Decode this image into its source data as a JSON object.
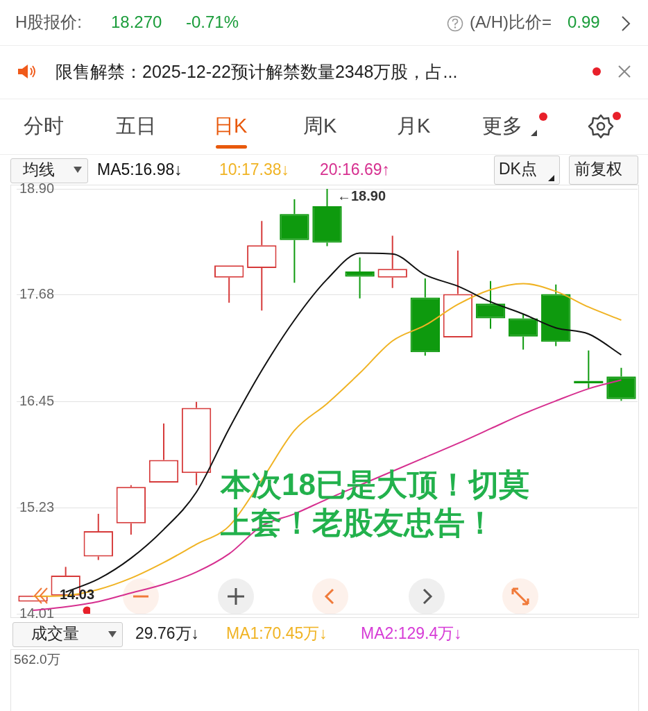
{
  "chart_data": {
    "type": "candlestick",
    "categories": [
      null,
      null,
      null,
      null,
      null,
      null,
      null,
      null,
      null,
      null,
      null,
      null,
      null,
      null,
      null,
      null,
      null,
      null,
      null
    ],
    "ohlc": [
      [
        14.15,
        14.22,
        14.15,
        14.22
      ],
      [
        14.22,
        14.55,
        14.22,
        14.45
      ],
      [
        14.67,
        15.16,
        14.63,
        14.96
      ],
      [
        15.05,
        15.49,
        14.92,
        15.47
      ],
      [
        15.52,
        16.2,
        15.52,
        15.78
      ],
      [
        15.63,
        16.45,
        15.49,
        16.38
      ],
      [
        17.88,
        18.02,
        17.59,
        18.02
      ],
      [
        17.99,
        18.53,
        17.5,
        18.25
      ],
      [
        18.61,
        18.78,
        17.82,
        18.31
      ],
      [
        18.7,
        18.9,
        18.24,
        18.28
      ],
      [
        17.95,
        18.11,
        17.64,
        17.89
      ],
      [
        17.88,
        18.36,
        17.76,
        17.98
      ],
      [
        17.65,
        17.87,
        16.98,
        17.02
      ],
      [
        17.19,
        18.19,
        17.19,
        17.69
      ],
      [
        17.58,
        17.84,
        17.29,
        17.41
      ],
      [
        17.41,
        17.46,
        17.05,
        17.2
      ],
      [
        17.69,
        17.8,
        17.09,
        17.14
      ],
      [
        16.69,
        17.04,
        16.6,
        16.66
      ],
      [
        16.74,
        16.84,
        16.46,
        16.48
      ]
    ],
    "colors": [
      "#d63a3a",
      "#d63a3a",
      "#d63a3a",
      "#d63a3a",
      "#d63a3a",
      "#d63a3a",
      "#d63a3a",
      "#d63a3a",
      "#0e9a0e",
      "#0e9a0e",
      "#0e9a0e",
      "#d63a3a",
      "#0e9a0e",
      "#d63a3a",
      "#0e9a0e",
      "#0e9a0e",
      "#0e9a0e",
      "#0e9a0e",
      "#0e9a0e"
    ],
    "series": [
      {
        "name": "MA5:16.98↓",
        "color": "#111111",
        "type": "line",
        "values": [
          null,
          14.26,
          14.41,
          14.65,
          14.98,
          15.41,
          16.14,
          16.81,
          17.39,
          17.86,
          18.16,
          18.15,
          17.91,
          17.78,
          17.6,
          17.46,
          17.3,
          17.23,
          16.99
        ]
      },
      {
        "name": "10:17.38↓",
        "color": "#f0b323",
        "type": "line",
        "values": [
          14.21,
          14.22,
          14.29,
          14.42,
          14.6,
          14.81,
          15.02,
          15.55,
          16.12,
          16.43,
          16.78,
          17.15,
          17.33,
          17.57,
          17.74,
          17.81,
          17.72,
          17.54,
          17.39
        ]
      },
      {
        "name": "20:16.69↑",
        "color": "#d62f8f",
        "type": "line",
        "values": [
          14.05,
          14.09,
          14.15,
          14.25,
          14.35,
          14.49,
          14.7,
          15.02,
          15.16,
          15.33,
          15.49,
          15.65,
          15.81,
          15.97,
          16.14,
          16.31,
          16.46,
          16.6,
          16.7
        ]
      }
    ],
    "ylim": [
      14.01,
      18.9
    ],
    "yticks": [
      {
        "value": 14.01,
        "label": "14.01"
      },
      {
        "value": 15.23,
        "label": "15.23"
      },
      {
        "value": 16.45,
        "label": "16.45"
      },
      {
        "value": 17.68,
        "label": "17.68"
      },
      {
        "value": 18.9,
        "label": "18.90"
      }
    ],
    "grid": "y",
    "legend": "top left",
    "annotations": [
      "H股报价:",
      "18.270",
      "-0.71%",
      "(A/H)比价=",
      "0.99",
      "限售解禁：2025-12-22预计解禁数量2348万股，占...",
      "分时",
      "五日",
      "日K",
      "周K",
      "月K",
      "更多",
      "均线",
      "DK点",
      "前复权",
      "←18.90",
      "14.03",
      "本次18已是大顶！切莫上套！老股友忠告！",
      "成交量",
      "29.76万↓",
      "MA1:70.45万↓",
      "MA2:129.4万↓",
      "562.0万"
    ]
  }
}
